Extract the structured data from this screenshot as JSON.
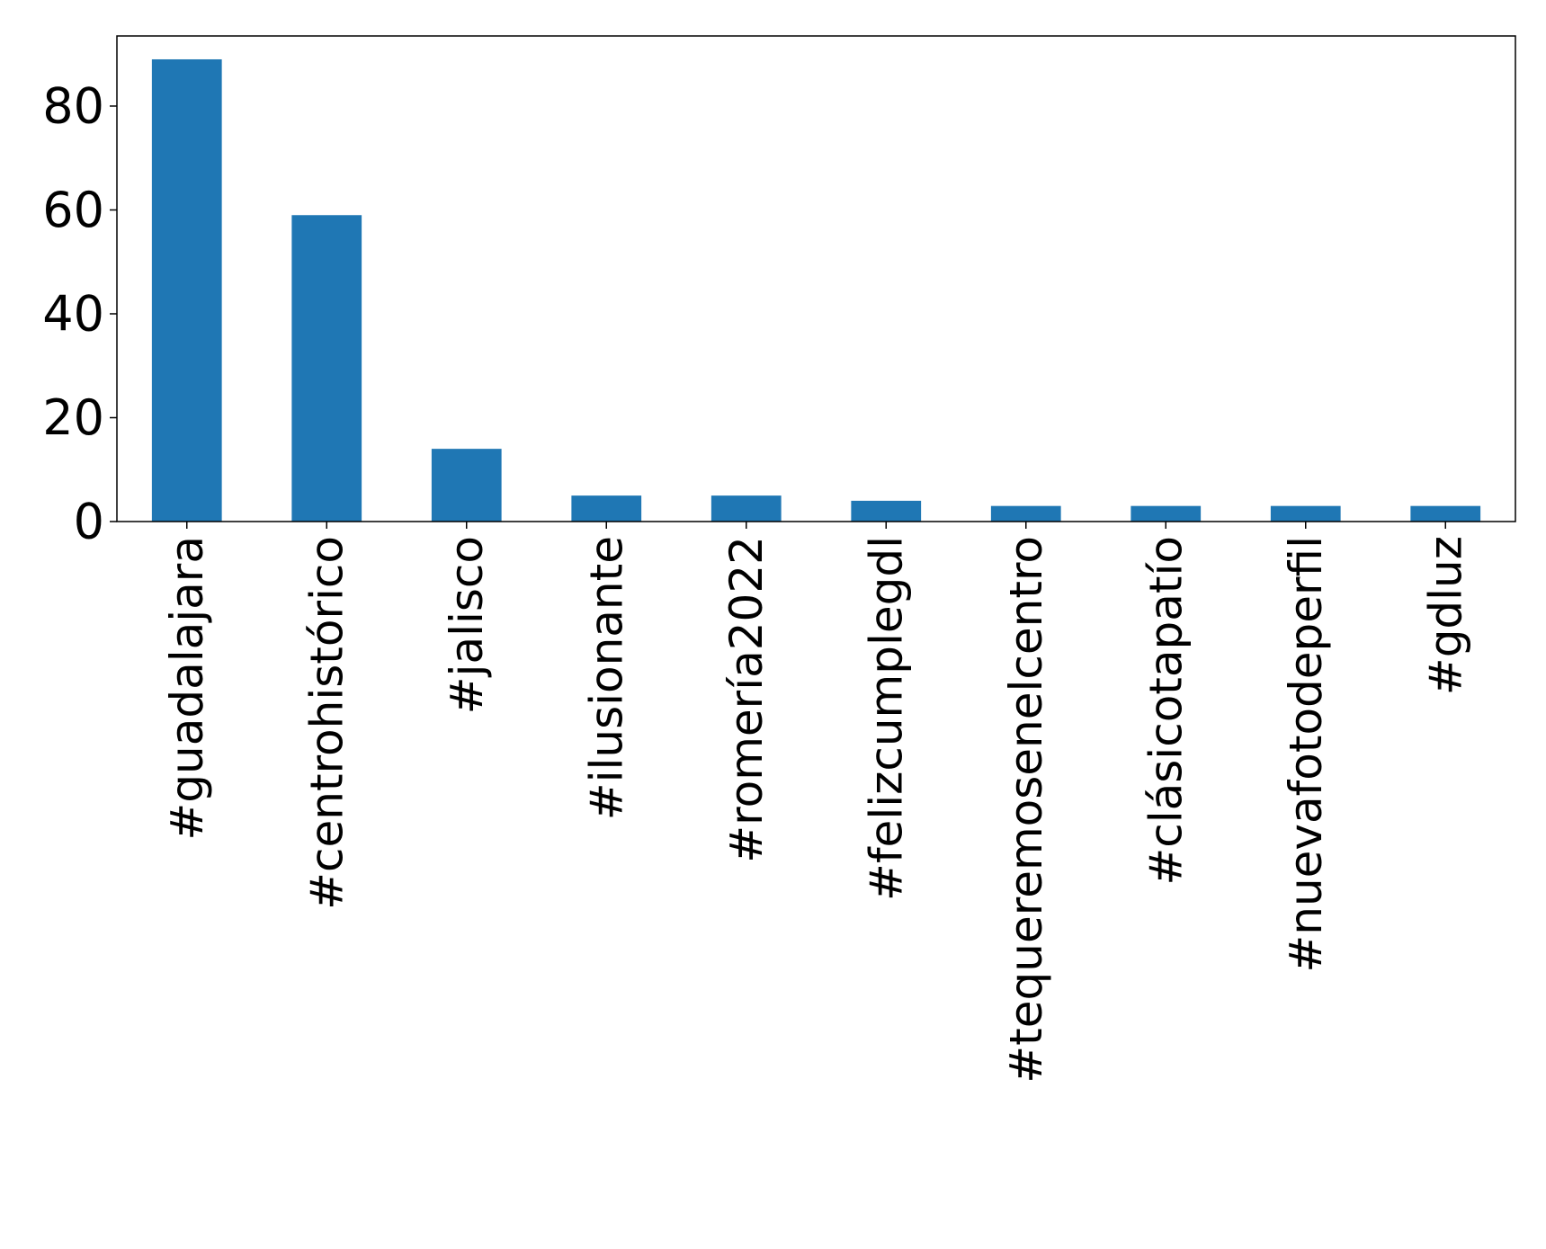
{
  "chart_data": {
    "type": "bar",
    "categories": [
      "#guadalajara",
      "#centrohistórico",
      "#jalisco",
      "#ilusionante",
      "#romería2022",
      "#felizcumplegdl",
      "#tequeremosenelcentro",
      "#clásicotapatío",
      "#nuevafotodeperfil",
      "#gdluz"
    ],
    "values": [
      89,
      59,
      14,
      5,
      5,
      4,
      3,
      3,
      3,
      3
    ],
    "title": "",
    "xlabel": "",
    "ylabel": "",
    "ylim": [
      0,
      93.5
    ],
    "yticks": [
      0,
      20,
      40,
      60,
      80
    ],
    "bar_color": "#1f77b4",
    "grid": false,
    "x_label_rotation": "vertical"
  }
}
